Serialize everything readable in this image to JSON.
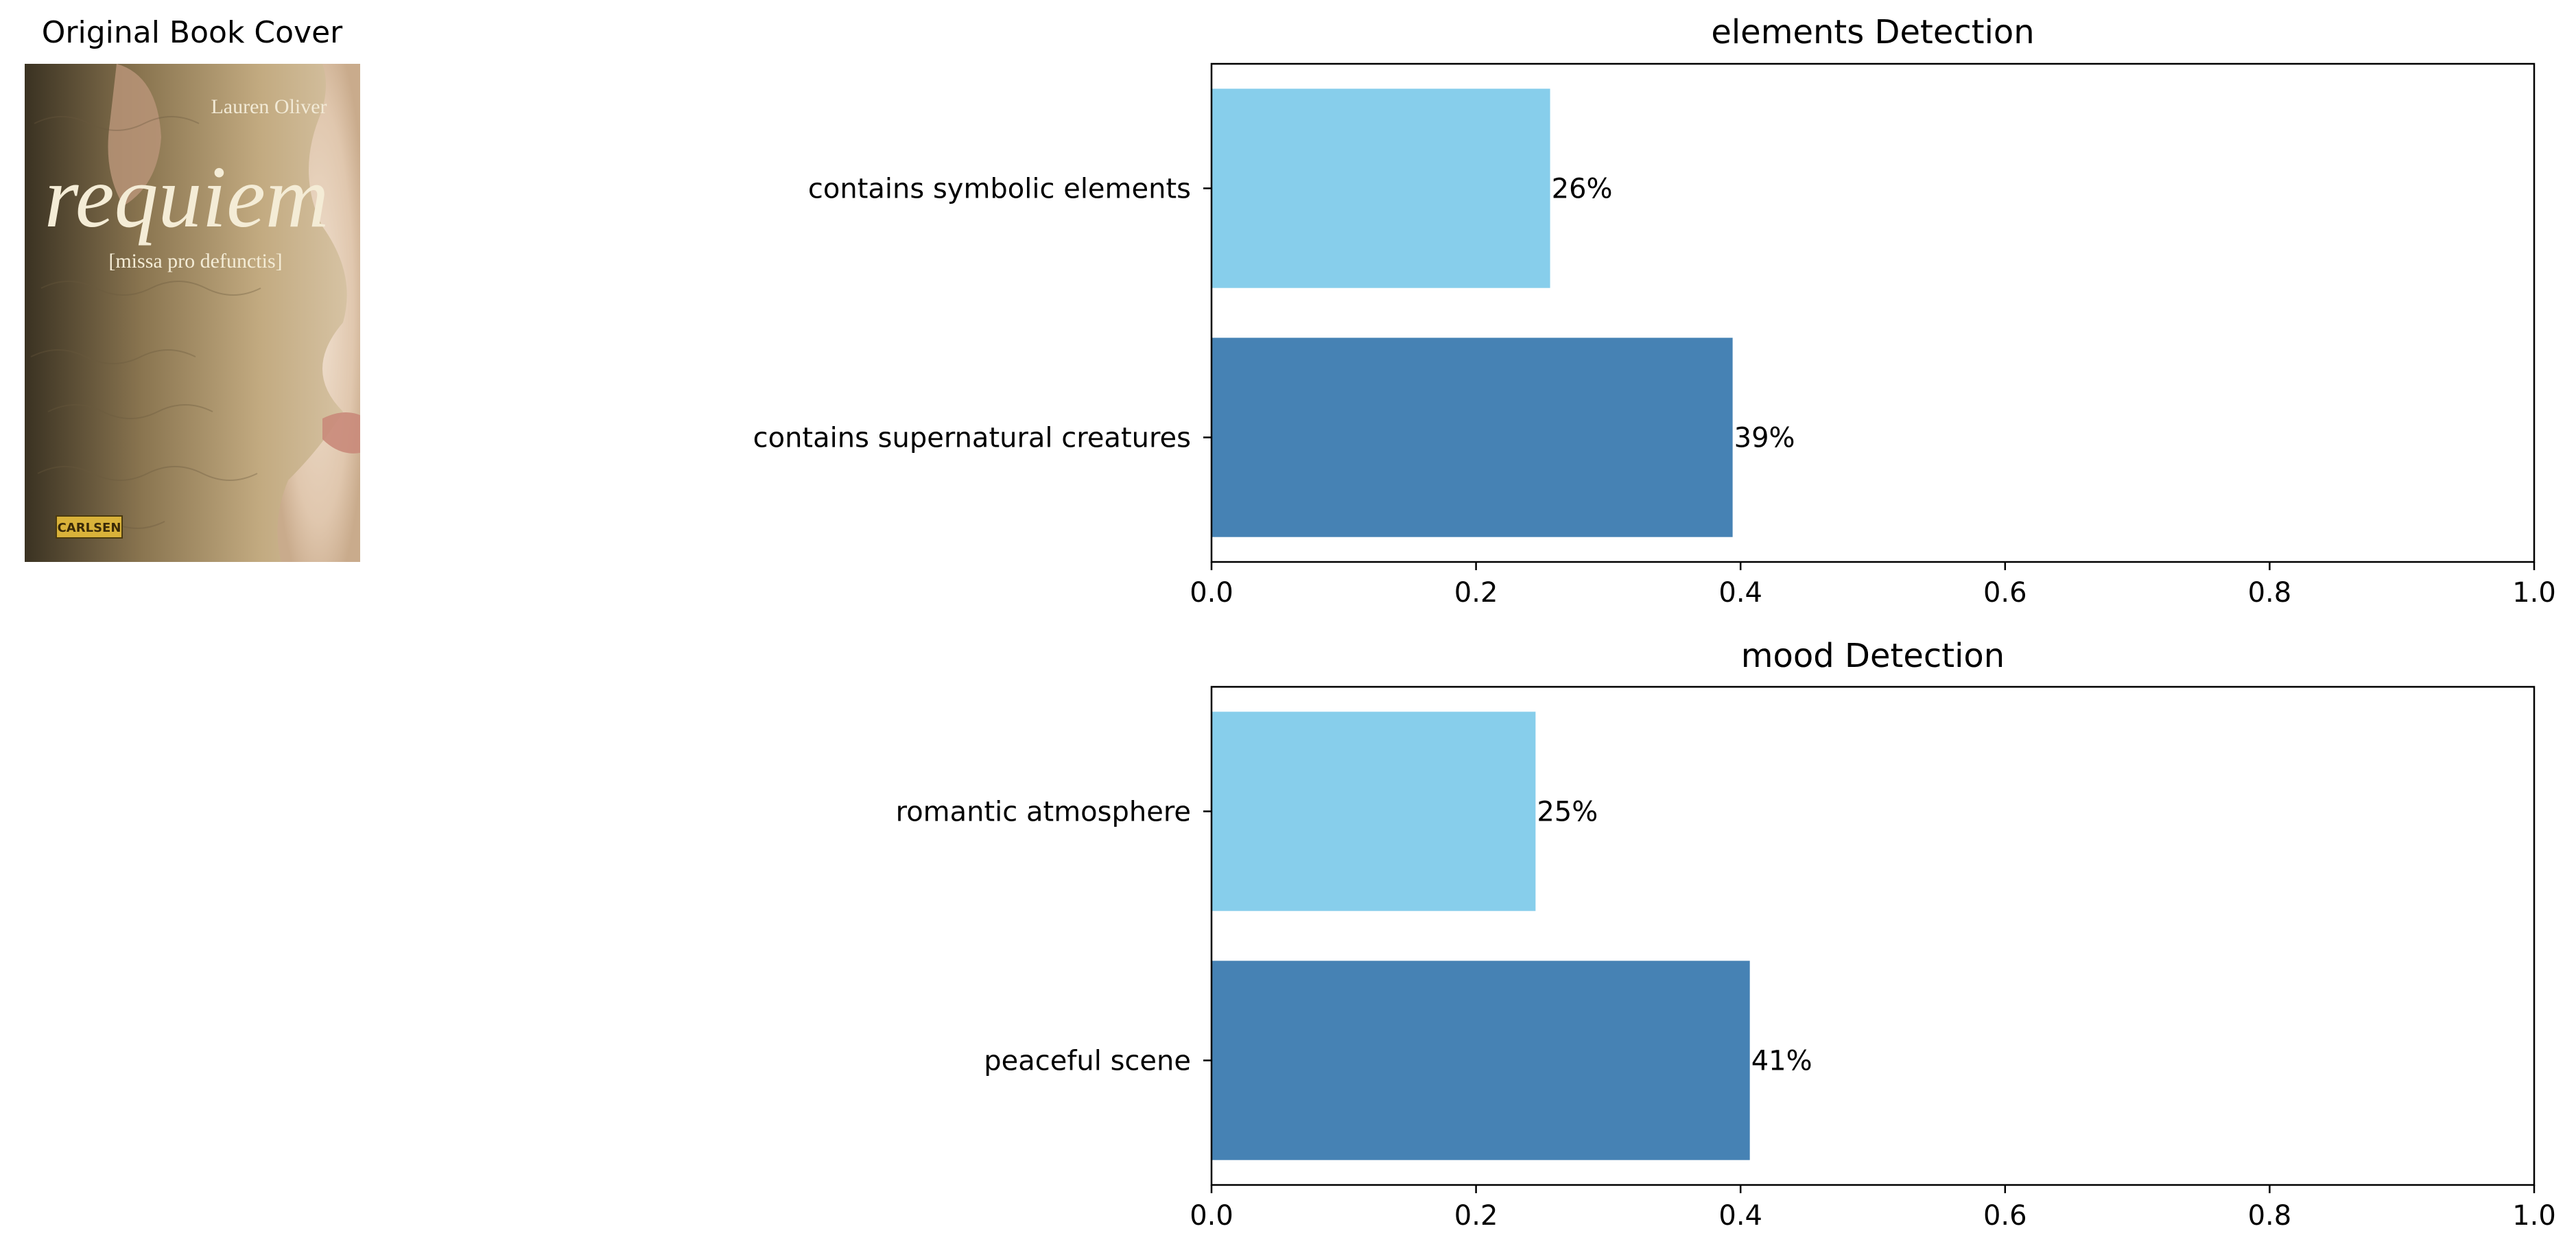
{
  "cover": {
    "title": "Original Book Cover",
    "author": "Lauren Oliver",
    "book_title": "requiem",
    "subtitle": "[missa pro defunctis]",
    "publisher": "CARLSEN",
    "colors": {
      "left_shadow": "#3c3424",
      "paper": "#b8a072",
      "skin": "#e2cbb4",
      "lettering": "#f4ecd6"
    }
  },
  "chart_data": [
    {
      "type": "bar",
      "orientation": "horizontal",
      "title": "elements Detection",
      "categories": [
        "contains supernatural creatures",
        "contains symbolic elements"
      ],
      "values": [
        0.394,
        0.256
      ],
      "value_labels": [
        "39%",
        "26%"
      ],
      "colors": [
        "#4682b4",
        "#87ceeb"
      ],
      "xlim": [
        0,
        1.0
      ],
      "xticks": [
        "0.0",
        "0.2",
        "0.4",
        "0.6",
        "0.8",
        "1.0"
      ],
      "grid": false
    },
    {
      "type": "bar",
      "orientation": "horizontal",
      "title": "mood Detection",
      "categories": [
        "peaceful scene",
        "romantic atmosphere"
      ],
      "values": [
        0.407,
        0.245
      ],
      "value_labels": [
        "41%",
        "25%"
      ],
      "colors": [
        "#4682b4",
        "#87ceeb"
      ],
      "xlim": [
        0,
        1.0
      ],
      "xticks": [
        "0.0",
        "0.2",
        "0.4",
        "0.6",
        "0.8",
        "1.0"
      ],
      "grid": false
    }
  ]
}
